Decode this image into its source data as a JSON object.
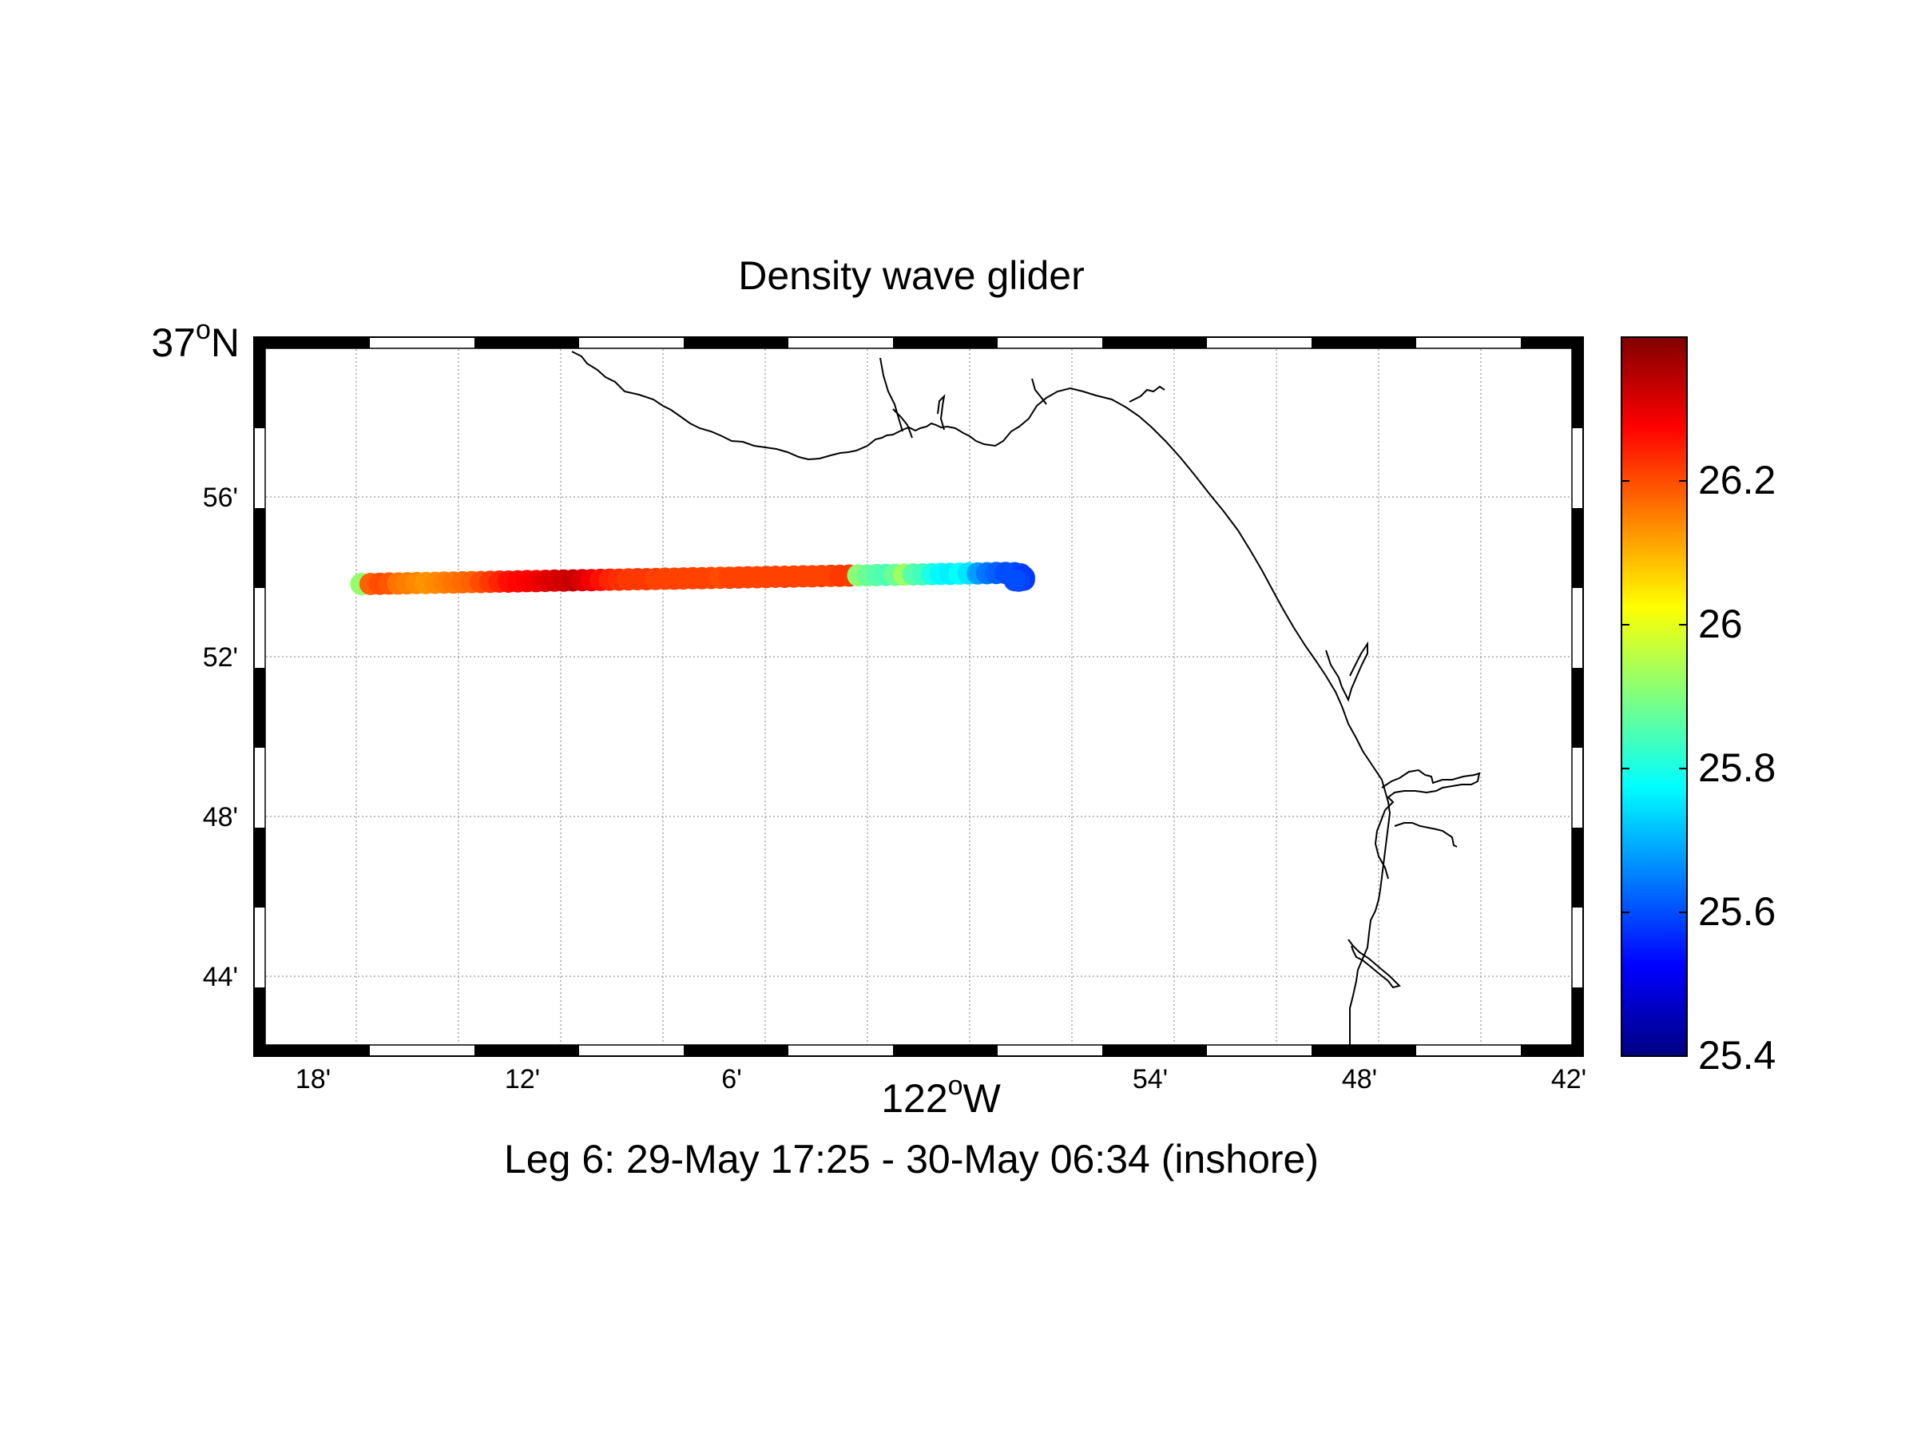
{
  "title": "Density wave glider",
  "subtitle": "Leg 6: 29-May 17:25 - 30-May 06:34 (inshore)",
  "lon_axis": {
    "label_deg": "122",
    "label_sup": "o",
    "label_suffix": "W",
    "ticks": [
      "18'",
      "12'",
      "6'",
      "54'",
      "48'",
      "42'"
    ],
    "range": [
      -122.35,
      -121.7
    ]
  },
  "lat_axis": {
    "label_deg": "37",
    "label_sup": "o",
    "label_suffix": "N",
    "ticks": [
      "56'",
      "52'",
      "48'",
      "44'"
    ],
    "range": [
      36.7,
      37.0
    ]
  },
  "colorbar": {
    "ticks": [
      "25.4",
      "25.6",
      "25.8",
      "26",
      "26.2"
    ],
    "range": [
      25.4,
      26.4
    ],
    "colormap": "jet"
  },
  "colors": {
    "coastline": "#000000",
    "grid": "#9a9a9a",
    "frame": "#000000",
    "background": "#ffffff"
  },
  "chart_data": {
    "type": "scatter",
    "title": "Density wave glider",
    "xlabel": "122°W",
    "ylabel": "37°N",
    "xlim": [
      -122.35,
      -121.7
    ],
    "ylim": [
      36.7,
      37.0
    ],
    "clim": [
      25.4,
      26.4
    ],
    "grid": true,
    "series": [
      {
        "lon": [
          -122.2975,
          -122.293,
          -122.2885,
          -122.284,
          -122.2795,
          -122.275,
          -122.2705,
          -122.266,
          -122.2615,
          -122.257,
          -122.2525,
          -122.248,
          -122.2435,
          -122.239,
          -122.2345,
          -122.23,
          -122.2255,
          -122.221,
          -122.2165,
          -122.212,
          -122.2075,
          -122.203,
          -122.1985,
          -122.194,
          -122.1895,
          -122.185,
          -122.1805,
          -122.176,
          -122.1715,
          -122.167,
          -122.1625,
          -122.158,
          -122.1535,
          -122.149,
          -122.1445,
          -122.14,
          -122.1355,
          -122.131,
          -122.1265,
          -122.122,
          -122.1175,
          -122.113,
          -122.1085,
          -122.104,
          -122.0995,
          -122.095,
          -122.0905,
          -122.086,
          -122.0815,
          -122.077,
          -122.0725,
          -122.068,
          -122.0635,
          -122.059,
          -122.0545,
          -122.05,
          -122.0455,
          -122.041,
          -122.0365,
          -122.032,
          -122.0275,
          -122.023,
          -122.0185,
          -122.014,
          -122.0095,
          -122.005,
          -122.0005,
          -121.996,
          -121.9915,
          -121.987,
          -121.9825,
          -121.978,
          -121.975,
          -121.9735,
          -121.9735,
          -121.976,
          -121.978
        ],
        "lat": [
          36.897,
          36.897,
          36.8971,
          36.8972,
          36.8972,
          36.8973,
          36.8974,
          36.8974,
          36.8975,
          36.8976,
          36.8976,
          36.8977,
          36.8978,
          36.8978,
          36.8979,
          36.898,
          36.898,
          36.8981,
          36.8982,
          36.8982,
          36.8983,
          36.8984,
          36.8984,
          36.8985,
          36.8986,
          36.8986,
          36.8987,
          36.8988,
          36.8988,
          36.8989,
          36.899,
          36.899,
          36.8991,
          36.8992,
          36.8992,
          36.8993,
          36.8994,
          36.8994,
          36.8995,
          36.8996,
          36.8996,
          36.8997,
          36.8998,
          36.8998,
          36.8999,
          36.9,
          36.9,
          36.9001,
          36.9002,
          36.9002,
          36.9003,
          36.9004,
          36.9004,
          36.9005,
          36.9006,
          36.9006,
          36.9007,
          36.9008,
          36.9008,
          36.9009,
          36.901,
          36.901,
          36.9011,
          36.9012,
          36.9012,
          36.9013,
          36.9014,
          36.9014,
          36.9015,
          36.9016,
          36.9016,
          36.9015,
          36.901,
          36.8998,
          36.8988,
          36.8984,
          36.8986
        ],
        "density": [
          25.92,
          26.18,
          26.2,
          26.19,
          26.16,
          26.15,
          26.14,
          26.13,
          26.14,
          26.15,
          26.16,
          26.17,
          26.18,
          26.2,
          26.22,
          26.24,
          26.26,
          26.27,
          26.28,
          26.29,
          26.3,
          26.31,
          26.32,
          26.33,
          26.31,
          26.29,
          26.26,
          26.24,
          26.23,
          26.22,
          26.22,
          26.22,
          26.21,
          26.21,
          26.21,
          26.21,
          26.21,
          26.21,
          26.21,
          26.2,
          26.21,
          26.21,
          26.21,
          26.21,
          26.21,
          26.21,
          26.21,
          26.21,
          26.21,
          26.21,
          26.21,
          26.21,
          26.22,
          26.22,
          25.91,
          25.88,
          25.86,
          25.85,
          25.88,
          25.93,
          25.86,
          25.84,
          25.8,
          25.77,
          25.76,
          25.78,
          25.75,
          25.68,
          25.64,
          25.62,
          25.6,
          25.6,
          25.59,
          25.58,
          25.58,
          25.59,
          25.6
        ]
      }
    ]
  }
}
